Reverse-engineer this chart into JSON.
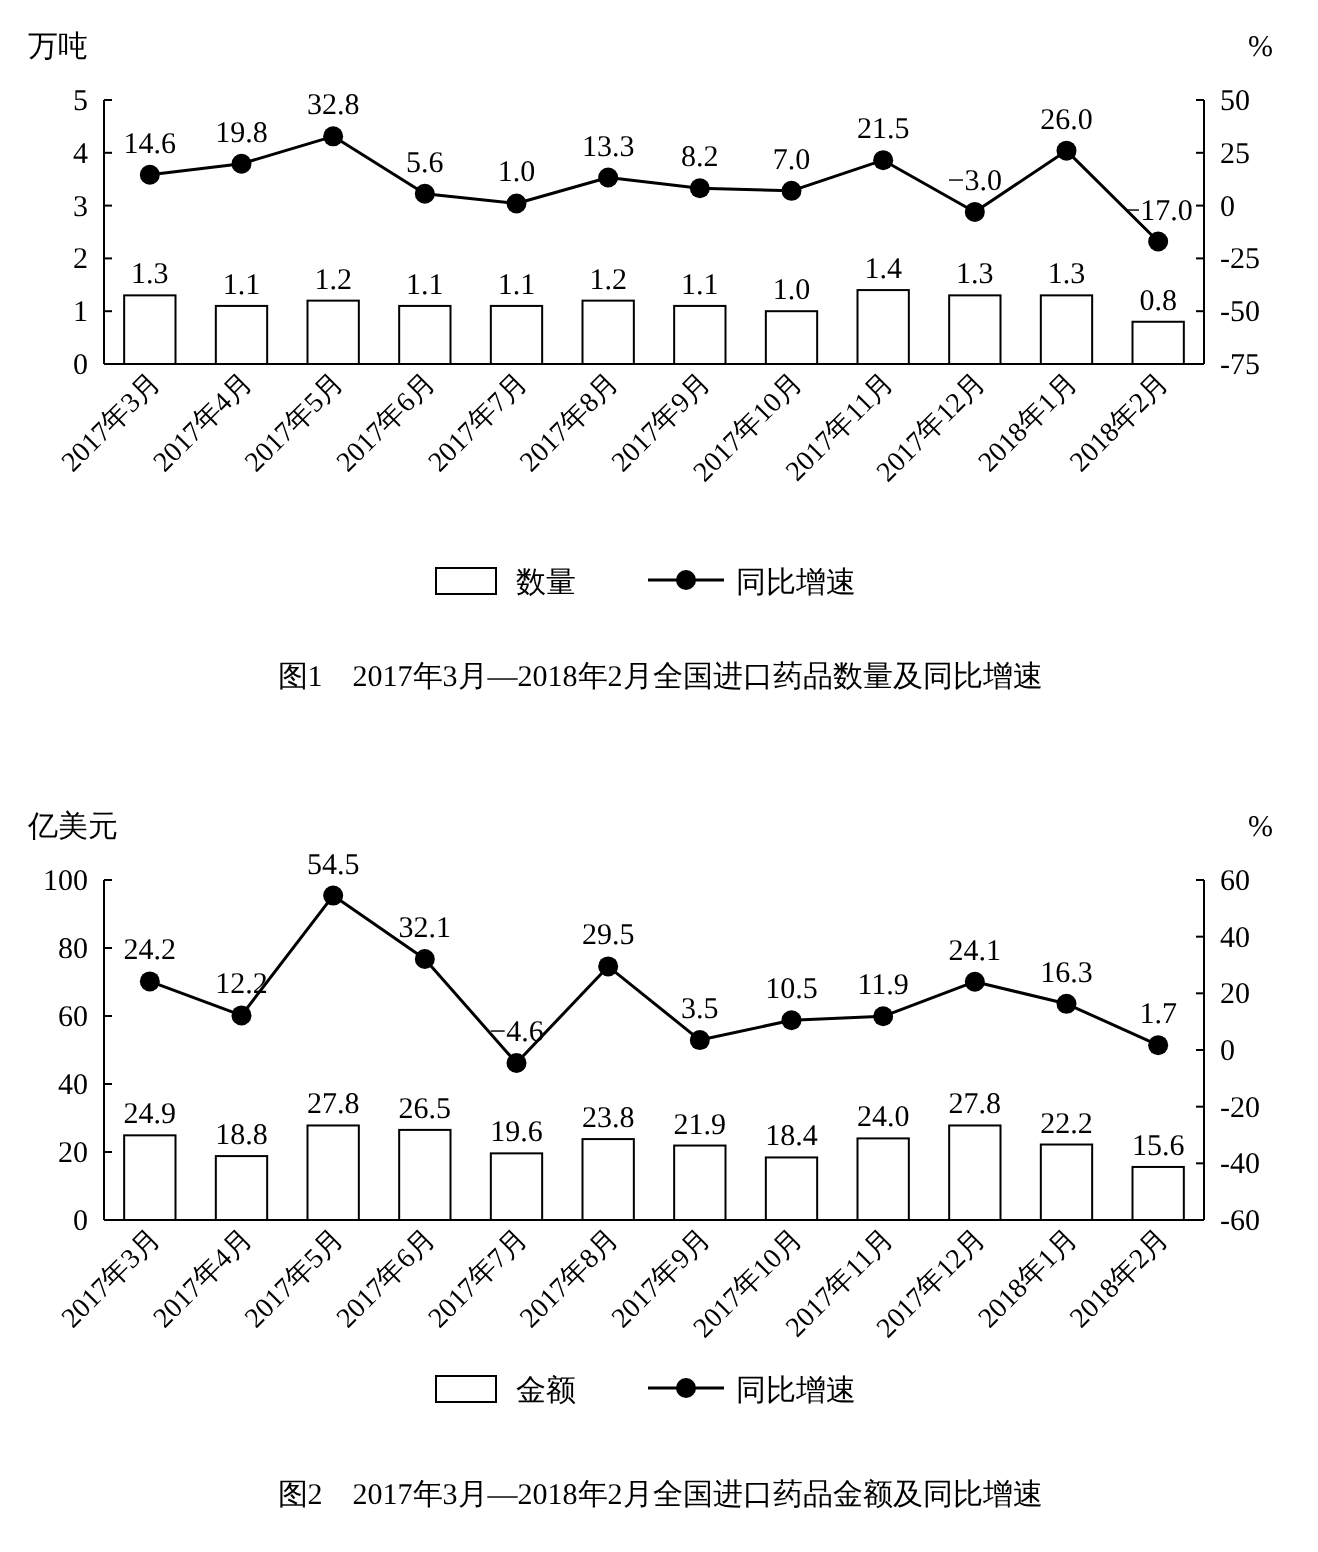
{
  "chart_data": [
    {
      "type": "bar",
      "title": "图1　2017年3月—2018年2月全国进口药品数量及同比增速",
      "ylabel": "万吨",
      "y2label": "%",
      "categories": [
        "2017年3月",
        "2017年4月",
        "2017年5月",
        "2017年6月",
        "2017年7月",
        "2017年8月",
        "2017年9月",
        "2017年10月",
        "2017年11月",
        "2017年12月",
        "2018年1月",
        "2018年2月"
      ],
      "series": [
        {
          "name": "数量",
          "color": "#ffffff",
          "values": [
            1.3,
            1.1,
            1.2,
            1.1,
            1.1,
            1.2,
            1.1,
            1.0,
            1.4,
            1.3,
            1.3,
            0.8
          ],
          "value_labels": [
            "1.3",
            "1.1",
            "1.2",
            "1.1",
            "1.1",
            "1.2",
            "1.1",
            "1.0",
            "1.4",
            "1.3",
            "1.3",
            "0.8"
          ]
        },
        {
          "name": "同比增速",
          "type": "line",
          "axis": "y2",
          "color": "#000000",
          "values": [
            14.6,
            19.8,
            32.8,
            5.6,
            1.0,
            13.3,
            8.2,
            7.0,
            21.5,
            -3.0,
            26.0,
            -17.0
          ],
          "value_labels": [
            "14.6",
            "19.8",
            "32.8",
            "5.6",
            "1.0",
            "13.3",
            "8.2",
            "7.0",
            "21.5",
            "−3.0",
            "26.0",
            "−17.0"
          ]
        }
      ],
      "ylim": [
        0,
        5
      ],
      "yticks": [
        0,
        1,
        2,
        3,
        4,
        5
      ],
      "y2lim": [
        -75,
        50
      ],
      "y2ticks": [
        -75,
        -50,
        -25,
        0,
        25,
        50
      ],
      "marker": "circle",
      "legend": "bottom"
    },
    {
      "type": "bar",
      "title": "图2　2017年3月—2018年2月全国进口药品金额及同比增速",
      "ylabel": "亿美元",
      "y2label": "%",
      "categories": [
        "2017年3月",
        "2017年4月",
        "2017年5月",
        "2017年6月",
        "2017年7月",
        "2017年8月",
        "2017年9月",
        "2017年10月",
        "2017年11月",
        "2017年12月",
        "2018年1月",
        "2018年2月"
      ],
      "series": [
        {
          "name": "金额",
          "color": "#ffffff",
          "values": [
            24.9,
            18.8,
            27.8,
            26.5,
            19.6,
            23.8,
            21.9,
            18.4,
            24.0,
            27.8,
            22.2,
            15.6
          ],
          "value_labels": [
            "24.9",
            "18.8",
            "27.8",
            "26.5",
            "19.6",
            "23.8",
            "21.9",
            "18.4",
            "24.0",
            "27.8",
            "22.2",
            "15.6"
          ]
        },
        {
          "name": "同比增速",
          "type": "line",
          "axis": "y2",
          "color": "#000000",
          "values": [
            24.2,
            12.2,
            54.5,
            32.1,
            -4.6,
            29.5,
            3.5,
            10.5,
            11.9,
            24.1,
            16.3,
            1.7
          ],
          "value_labels": [
            "24.2",
            "12.2",
            "54.5",
            "32.1",
            "−4.6",
            "29.5",
            "3.5",
            "10.5",
            "11.9",
            "24.1",
            "16.3",
            "1.7"
          ]
        }
      ],
      "ylim": [
        0,
        100
      ],
      "yticks": [
        0,
        20,
        40,
        60,
        80,
        100
      ],
      "y2lim": [
        -60,
        60
      ],
      "y2ticks": [
        -60,
        -40,
        -20,
        0,
        20,
        40,
        60
      ],
      "marker": "circle",
      "legend": "bottom"
    }
  ]
}
